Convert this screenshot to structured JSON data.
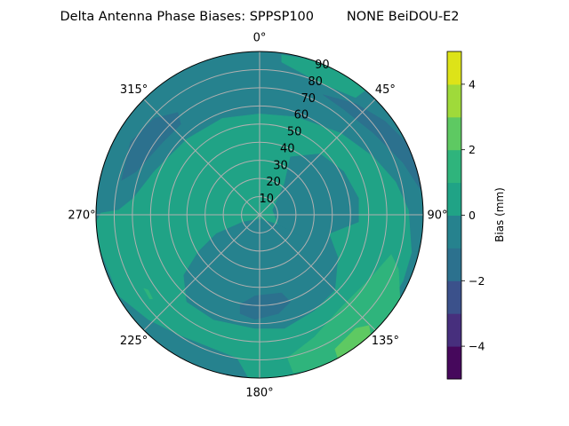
{
  "chart_data": {
    "type": "heatmap",
    "subtype": "polar-filled-contour",
    "title": "Delta Antenna Phase Biases: SPPSP100        NONE BeiDOU-E2",
    "angular_tick_labels": [
      "0°",
      "45°",
      "90°",
      "135°",
      "180°",
      "225°",
      "270°",
      "315°"
    ],
    "radial_tick_labels": [
      "10",
      "20",
      "30",
      "40",
      "50",
      "60",
      "70",
      "80",
      "90"
    ],
    "radial_range": [
      0,
      90
    ],
    "angular_direction": "clockwise",
    "angular_zero": "top",
    "grid": true,
    "colorbar": {
      "label": "Bias (mm)",
      "range": [
        -5,
        5
      ],
      "levels": [
        -5,
        -4,
        -3,
        -2,
        -1,
        0,
        1,
        2,
        3,
        4,
        5
      ],
      "tick_values": [
        -4,
        -2,
        0,
        2,
        4
      ],
      "tick_labels": [
        "−4",
        "−2",
        "0",
        "2",
        "4"
      ],
      "colormap": "viridis",
      "colors": [
        "#46085c",
        "#472f7d",
        "#3b518b",
        "#2c718e",
        "#26828e",
        "#20a386",
        "#2fb47c",
        "#5ec962",
        "#9fda3a",
        "#dde318"
      ]
    },
    "dominant_levels": {
      "background": "-1 to 0",
      "central_ring_and_south_west": "0 to 1",
      "north_west_and_north_east_and_south_patches": "-2 to -1",
      "south_east_rim": "1 to 2",
      "south_east_peak": "2 to 3"
    }
  }
}
